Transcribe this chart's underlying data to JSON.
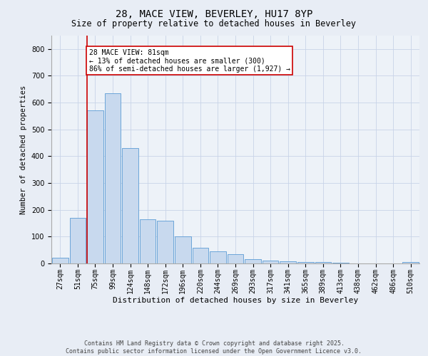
{
  "title": "28, MACE VIEW, BEVERLEY, HU17 8YP",
  "subtitle": "Size of property relative to detached houses in Beverley",
  "xlabel": "Distribution of detached houses by size in Beverley",
  "ylabel": "Number of detached properties",
  "categories": [
    "27sqm",
    "51sqm",
    "75sqm",
    "99sqm",
    "124sqm",
    "148sqm",
    "172sqm",
    "196sqm",
    "220sqm",
    "244sqm",
    "269sqm",
    "293sqm",
    "317sqm",
    "341sqm",
    "365sqm",
    "389sqm",
    "413sqm",
    "438sqm",
    "462sqm",
    "486sqm",
    "510sqm"
  ],
  "values": [
    20,
    170,
    570,
    635,
    430,
    165,
    160,
    102,
    58,
    45,
    35,
    15,
    10,
    8,
    5,
    4,
    2,
    1,
    0,
    0,
    5
  ],
  "bar_color": "#c8d9ee",
  "bar_edge_color": "#5b9bd5",
  "grid_color": "#c8d4e8",
  "vline_color": "#cc0000",
  "annotation_text": "28 MACE VIEW: 81sqm\n← 13% of detached houses are smaller (300)\n86% of semi-detached houses are larger (1,927) →",
  "annotation_box_color": "#ffffff",
  "annotation_box_edge": "#cc0000",
  "footer_line1": "Contains HM Land Registry data © Crown copyright and database right 2025.",
  "footer_line2": "Contains public sector information licensed under the Open Government Licence v3.0.",
  "ylim": [
    0,
    850
  ],
  "background_color": "#e8edf5",
  "plot_bg_color": "#edf2f8",
  "title_fontsize": 10,
  "subtitle_fontsize": 8.5,
  "ylabel_fontsize": 7.5,
  "xlabel_fontsize": 8,
  "tick_fontsize": 7,
  "annotation_fontsize": 7,
  "footer_fontsize": 6
}
